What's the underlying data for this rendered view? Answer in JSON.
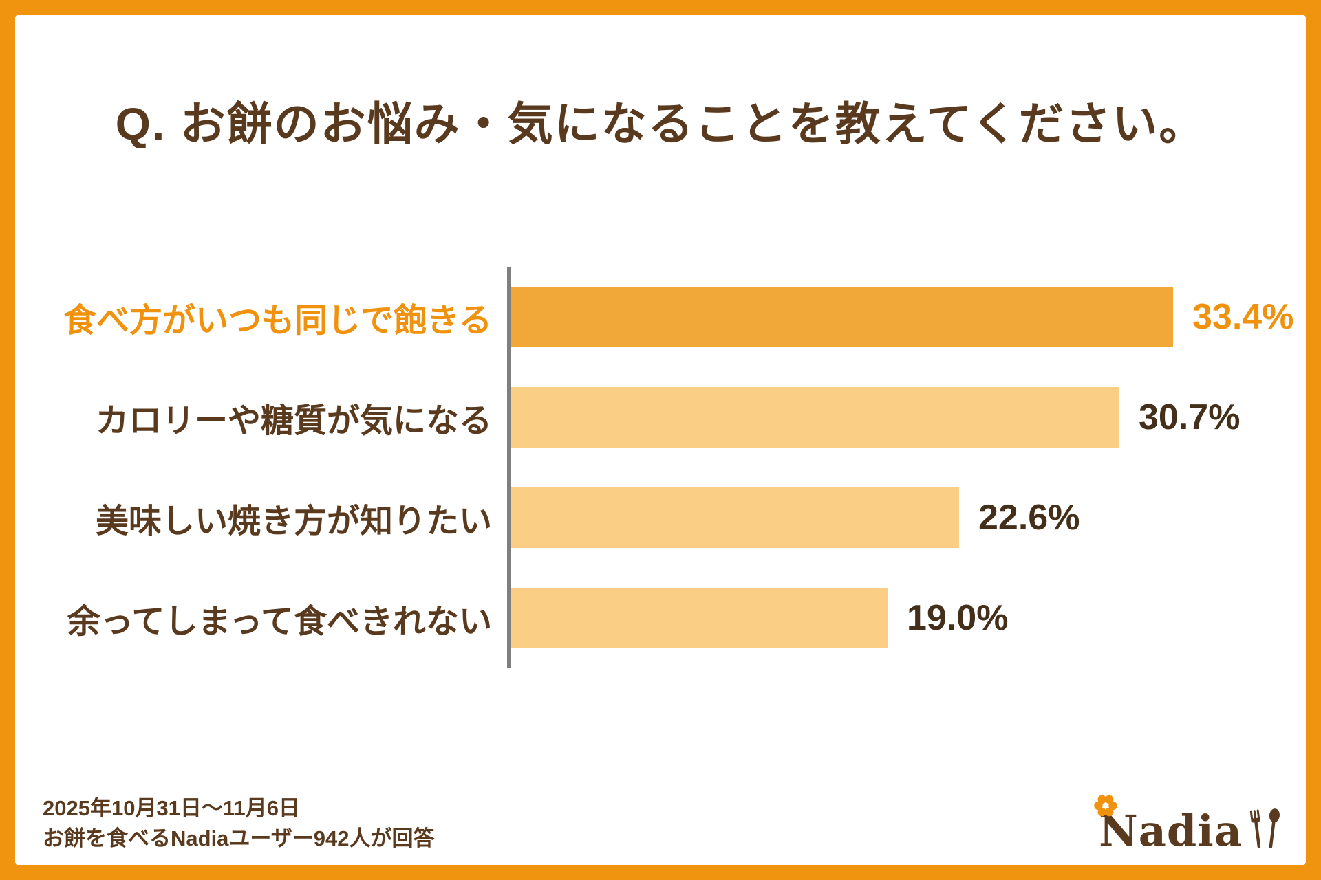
{
  "colors": {
    "frame": "#F0930E",
    "background": "#FFFFFF",
    "title_text": "#5A3A1E",
    "label_normal": "#5A3A1E",
    "label_highlight": "#F0920E",
    "value_normal": "#44301A",
    "value_highlight": "#F0920E",
    "bar_normal": "#FACF85",
    "bar_highlight": "#F2A838",
    "axis_line": "#7F7F7F",
    "logo_text": "#5A3A1E",
    "logo_flower": "#F0920E"
  },
  "title": "Q. お餅のお悩み・気になることを教えてください。",
  "chart_data": {
    "type": "bar",
    "orientation": "horizontal",
    "title": "Q. お餅のお悩み・気になることを教えてください。",
    "categories": [
      "食べ方がいつも同じで飽きる",
      "カロリーや糖質が気になる",
      "美味しい焼き方が知りたい",
      "余ってしまって食べきれない"
    ],
    "values": [
      33.4,
      30.7,
      22.6,
      19.0
    ],
    "value_labels": [
      "33.4%",
      "30.7%",
      "22.6%",
      "19.0%"
    ],
    "highlight_index": 0,
    "xlim": [
      0,
      35
    ],
    "grid": false,
    "legend": false,
    "axis": "single vertical baseline at left of bars"
  },
  "footer": {
    "period": "2025年10月31日〜11月6日",
    "respondents": "お餅を食べるNadiaユーザー942人が回答"
  },
  "logo": {
    "text": "Nadia",
    "icons": [
      "flower-icon",
      "fork-and-spoon-icon"
    ]
  }
}
